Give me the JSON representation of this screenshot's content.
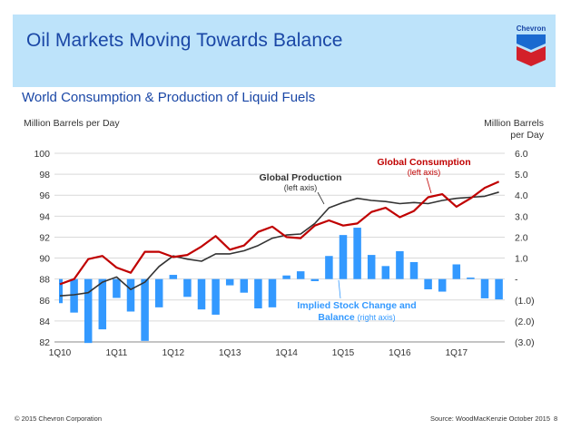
{
  "header": {
    "title": "Oil Markets Moving Towards Balance",
    "logo_text": "Chevron"
  },
  "footer": {
    "copyright": "© 2015 Chevron Corporation",
    "source": "Source: WoodMacKenzie October 2015",
    "page_number": "8"
  },
  "colors": {
    "banner": "#bde3fa",
    "title": "#1a47a6",
    "consumption": "#c00000",
    "production": "#333333",
    "stock_change": "#3399ff"
  },
  "chart_data": {
    "type": "bar+line",
    "title": "World Consumption & Production of Liquid Fuels",
    "ylabel_left": "Million Barrels per Day",
    "ylabel_right": "Million Barrels per Day",
    "ylim_left": [
      82,
      100
    ],
    "ylim_right": [
      -3.0,
      6.0
    ],
    "grid": true,
    "yticks_left": [
      "100",
      "98",
      "96",
      "94",
      "92",
      "90",
      "88",
      "86",
      "84",
      "82"
    ],
    "yticks_right": [
      "6.0",
      "5.0",
      "4.0",
      "3.0",
      "2.0",
      "1.0",
      "-",
      "(1.0)",
      "(2.0)",
      "(3.0)"
    ],
    "xtick_labels": [
      "1Q10",
      "1Q11",
      "1Q12",
      "1Q13",
      "1Q14",
      "1Q15",
      "1Q16",
      "1Q17"
    ],
    "x": [
      "1Q10",
      "2Q10",
      "3Q10",
      "4Q10",
      "1Q11",
      "2Q11",
      "3Q11",
      "4Q11",
      "1Q12",
      "2Q12",
      "3Q12",
      "4Q12",
      "1Q13",
      "2Q13",
      "3Q13",
      "4Q13",
      "1Q14",
      "2Q14",
      "3Q14",
      "4Q14",
      "1Q15",
      "2Q15",
      "3Q15",
      "4Q15",
      "1Q16",
      "2Q16",
      "3Q16",
      "4Q16",
      "1Q17",
      "2Q17",
      "3Q17",
      "4Q17"
    ],
    "series": [
      {
        "name": "Global Consumption",
        "note": "(left axis)",
        "type": "line",
        "axis": "left",
        "values": [
          87.5,
          88.0,
          89.9,
          90.2,
          89.1,
          88.6,
          90.6,
          90.6,
          90.1,
          90.3,
          91.1,
          92.1,
          90.8,
          91.2,
          92.5,
          93.0,
          92.0,
          91.9,
          93.1,
          93.6,
          93.1,
          93.3,
          94.4,
          94.8,
          93.9,
          94.5,
          95.8,
          96.1,
          94.9,
          95.7,
          96.7,
          97.3
        ]
      },
      {
        "name": "Global Production",
        "note": "(left axis)",
        "type": "line",
        "axis": "left",
        "values": [
          86.4,
          86.5,
          86.7,
          87.7,
          88.2,
          87.0,
          87.7,
          89.2,
          90.2,
          89.9,
          89.7,
          90.4,
          90.4,
          90.7,
          91.2,
          91.9,
          92.2,
          92.3,
          93.3,
          94.8,
          95.3,
          95.7,
          95.5,
          95.4,
          95.2,
          95.3,
          95.2,
          95.5,
          95.7,
          95.8,
          95.9,
          96.3
        ]
      },
      {
        "name": "Implied Stock Change and Balance",
        "note": "(right axis)",
        "type": "bar",
        "axis": "right",
        "values": [
          -1.15,
          -1.6,
          -3.05,
          -2.4,
          -0.9,
          -1.55,
          -2.95,
          -1.35,
          0.2,
          -0.85,
          -1.45,
          -1.7,
          -0.3,
          -0.65,
          -1.4,
          -1.35,
          0.17,
          0.37,
          -0.1,
          1.1,
          2.1,
          2.45,
          1.15,
          0.62,
          1.33,
          0.81,
          -0.49,
          -0.6,
          0.7,
          0.07,
          -0.92,
          -0.97
        ]
      }
    ]
  }
}
